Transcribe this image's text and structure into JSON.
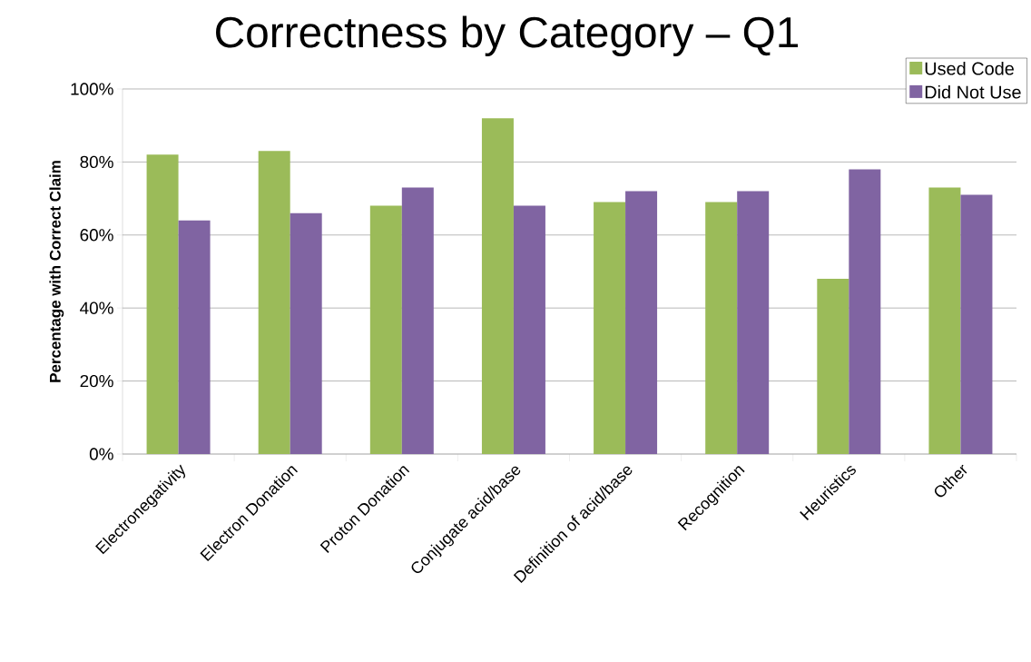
{
  "chart_data": {
    "type": "bar",
    "title": "Correctness by Category – Q1",
    "ylabel": "Percentage with Correct Claim",
    "categories": [
      "Electronegativity",
      "Electron Donation",
      "Proton Donation",
      "Conjugate acid/base",
      "Definition of acid/base",
      "Recognition",
      "Heuristics",
      "Other"
    ],
    "series": [
      {
        "name": "Used Code",
        "color": "#9bbb59",
        "values": [
          82,
          83,
          68,
          92,
          69,
          69,
          48,
          73
        ]
      },
      {
        "name": "Did Not Use",
        "color": "#8064a2",
        "values": [
          64,
          66,
          73,
          68,
          72,
          72,
          78,
          71
        ]
      }
    ],
    "ylim": [
      0,
      100
    ],
    "yticks": [
      {
        "value": 0,
        "label": "0%"
      },
      {
        "value": 20,
        "label": "20%"
      },
      {
        "value": 40,
        "label": "40%"
      },
      {
        "value": 60,
        "label": "60%"
      },
      {
        "value": 80,
        "label": "80%"
      },
      {
        "value": 100,
        "label": "100%"
      }
    ],
    "grid": "y",
    "legend": "top right"
  }
}
